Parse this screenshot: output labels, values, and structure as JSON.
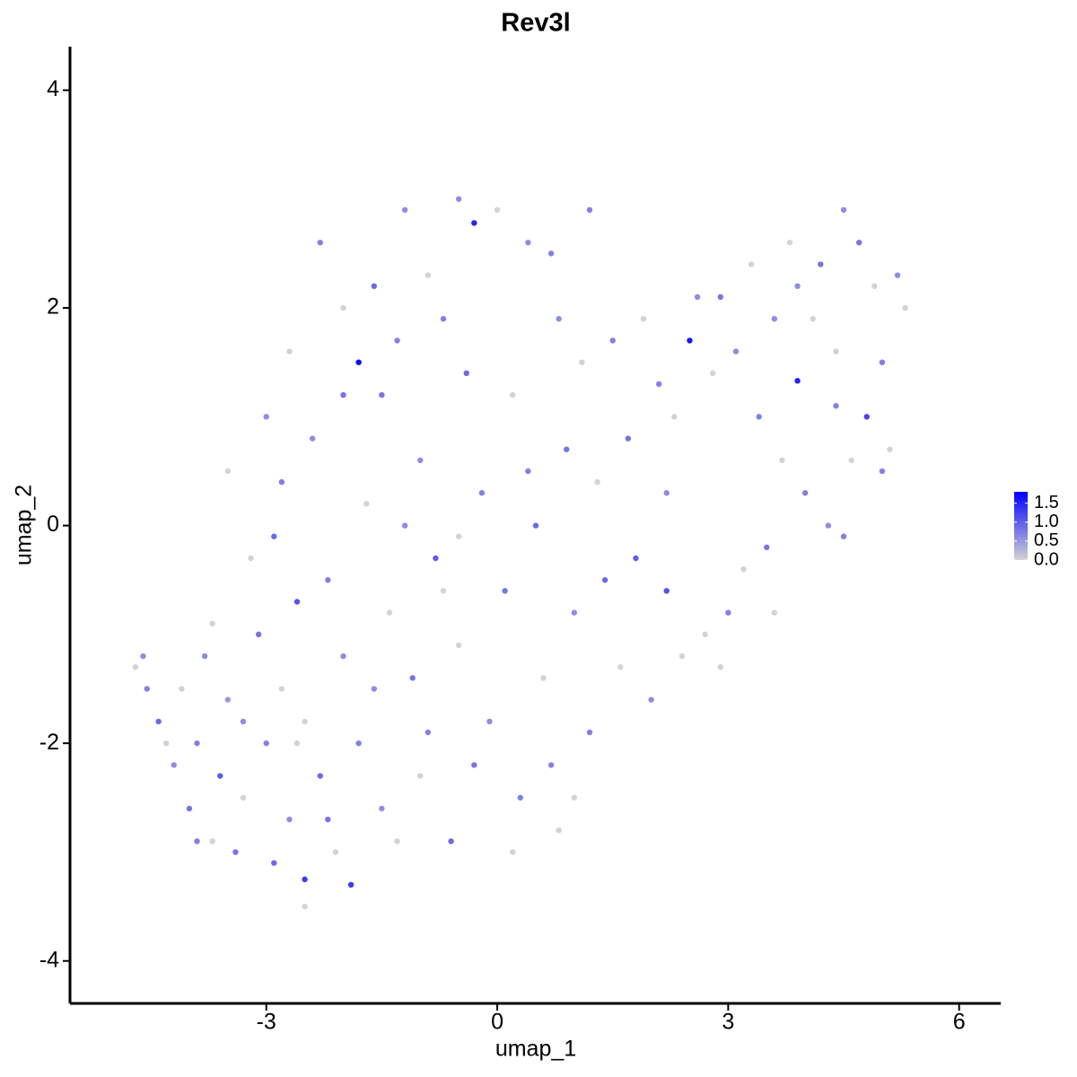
{
  "chart_data": {
    "type": "scatter",
    "title": "Rev3l",
    "x_label": "umap_1",
    "y_label": "umap_2",
    "xlim": [
      -5.55,
      6.54
    ],
    "ylim": [
      -4.39,
      4.4
    ],
    "xticks": [
      -3,
      0,
      3,
      6
    ],
    "yticks": [
      -4,
      -2,
      0,
      2,
      4
    ],
    "grid": false,
    "color_low": "#d3d3d3",
    "color_high": "#0000ff",
    "clim": [
      0,
      1.8
    ],
    "cticks": [
      {
        "value": 0,
        "label": "0.0"
      },
      {
        "value": 0.5,
        "label": "0.5"
      },
      {
        "value": 1,
        "label": "1.0"
      },
      {
        "value": 1.5,
        "label": "1.5"
      }
    ],
    "x": [
      -4.7,
      -4.6,
      -4.55,
      -4.4,
      -4.2,
      -4.1,
      -4.0,
      -3.9,
      -3.8,
      -3.7,
      -3.6,
      -3.5,
      -3.4,
      -3.3,
      -3.2,
      -3.1,
      -3.0,
      -2.9,
      -2.8,
      -2.8,
      -2.7,
      -2.6,
      -2.5,
      -2.5,
      -2.4,
      -2.3,
      -2.2,
      -2.1,
      -2.0,
      -2.0,
      -1.9,
      -1.8,
      -1.8,
      -1.7,
      -1.6,
      -1.5,
      -1.4,
      -1.3,
      -1.2,
      -1.1,
      -1.0,
      -1.0,
      -0.9,
      -0.8,
      -0.7,
      -0.6,
      -0.5,
      -0.5,
      -0.4,
      -0.3,
      -0.2,
      -0.1,
      0.0,
      0.1,
      0.2,
      0.3,
      0.4,
      0.5,
      0.6,
      0.7,
      0.8,
      0.9,
      1.0,
      1.1,
      1.2,
      1.3,
      1.4,
      1.5,
      1.6,
      1.7,
      1.8,
      1.9,
      2.0,
      2.1,
      2.2,
      2.3,
      2.4,
      2.5,
      2.6,
      2.7,
      2.8,
      2.9,
      3.0,
      3.1,
      3.2,
      3.3,
      3.4,
      3.5,
      3.6,
      3.7,
      3.8,
      3.9,
      4.0,
      4.1,
      4.2,
      4.3,
      4.4,
      4.5,
      4.6,
      4.7,
      4.8,
      4.9,
      5.0,
      5.1,
      5.2,
      5.3,
      4.5,
      3.6,
      2.9,
      -3.5,
      -3.0,
      -2.7,
      -2.3,
      -2.0,
      -1.5,
      -1.2,
      -0.7,
      -0.3,
      0.2,
      0.7,
      1.0,
      -3.7,
      -3.3,
      -2.9,
      -2.6,
      -2.2,
      -1.6,
      -1.3,
      -0.9,
      -0.5,
      0.4,
      0.8,
      1.2,
      -2.5,
      -3.9,
      -4.3,
      3.9,
      4.4,
      5.0,
      2.2
    ],
    "y": [
      -1.3,
      -1.2,
      -1.5,
      -1.8,
      -2.2,
      -1.5,
      -2.6,
      -2.0,
      -1.2,
      -2.9,
      -2.3,
      -1.6,
      -3.0,
      -2.5,
      -0.3,
      -1.0,
      -2.0,
      -3.1,
      0.4,
      -1.5,
      -2.7,
      -0.7,
      -3.25,
      -1.8,
      0.8,
      -2.3,
      -0.5,
      -3.0,
      1.2,
      -1.2,
      -3.3,
      1.5,
      -2.0,
      0.2,
      2.2,
      -2.6,
      -0.8,
      1.7,
      2.9,
      -1.4,
      0.6,
      -2.3,
      2.3,
      -0.3,
      1.9,
      -2.9,
      3.0,
      -1.1,
      1.4,
      2.78,
      0.3,
      -1.8,
      2.9,
      -0.6,
      1.2,
      -2.5,
      2.6,
      0.0,
      -1.4,
      2.5,
      -2.8,
      0.7,
      -0.8,
      1.5,
      -1.9,
      0.4,
      -0.5,
      1.7,
      -1.3,
      0.8,
      -0.3,
      1.9,
      -1.6,
      1.3,
      -0.6,
      1.0,
      -1.2,
      1.7,
      2.1,
      -1.0,
      1.4,
      2.1,
      -0.8,
      1.6,
      -0.4,
      2.4,
      1.0,
      -0.2,
      1.9,
      0.6,
      2.6,
      1.33,
      0.3,
      1.9,
      2.4,
      0.0,
      1.1,
      2.9,
      0.6,
      2.6,
      1.0,
      2.2,
      1.5,
      0.7,
      2.3,
      2.0,
      -0.1,
      -0.8,
      -1.3,
      0.5,
      1.0,
      1.6,
      2.6,
      2.0,
      1.2,
      0.0,
      -0.6,
      -2.2,
      -3.0,
      -2.2,
      -2.5,
      -0.9,
      -1.8,
      -0.1,
      -2.0,
      -2.7,
      -1.5,
      -2.9,
      -1.9,
      -0.1,
      0.5,
      1.9,
      2.9,
      -3.5,
      -2.9,
      -2.0,
      2.2,
      1.6,
      0.5,
      0.3
    ],
    "values": [
      0,
      0.6,
      0.7,
      0.9,
      0.6,
      0,
      0.8,
      0.7,
      0.6,
      0,
      1.0,
      0.5,
      0.8,
      0,
      0,
      0.8,
      0.7,
      0.9,
      0.7,
      0,
      0.6,
      1.1,
      1.3,
      0,
      0.6,
      0.9,
      0.7,
      0,
      0.8,
      0.6,
      1.3,
      1.7,
      0.7,
      0,
      0.9,
      0.6,
      0,
      0.7,
      0.6,
      0.8,
      0.6,
      0,
      0,
      1.0,
      0.7,
      0.9,
      0.6,
      0,
      0.9,
      1.5,
      0.7,
      0.6,
      0,
      0.8,
      0,
      0.7,
      0.6,
      0.9,
      0,
      0.7,
      0,
      0.8,
      0.6,
      0,
      0.7,
      0,
      0.9,
      0.7,
      0,
      0.8,
      1.0,
      0,
      0.6,
      0.7,
      1.1,
      0,
      0,
      1.6,
      0.6,
      0,
      0,
      0.8,
      0.7,
      0.6,
      0,
      0,
      0.7,
      0.8,
      0.6,
      0,
      0,
      1.5,
      0.7,
      0,
      0.8,
      0.6,
      0.7,
      0.6,
      0,
      0.8,
      1.2,
      0,
      0.7,
      0,
      0.6,
      0,
      0.7,
      0,
      0,
      0,
      0.6,
      0,
      0.7,
      0,
      0.8,
      0.6,
      0,
      0.8,
      0,
      0.7,
      0,
      0,
      0.6,
      0.9,
      0,
      0.8,
      0.6,
      0,
      0.7,
      0,
      0.7,
      0.6,
      0.7,
      0,
      0.7,
      0,
      0.6,
      0,
      0.7,
      0.6
    ]
  }
}
